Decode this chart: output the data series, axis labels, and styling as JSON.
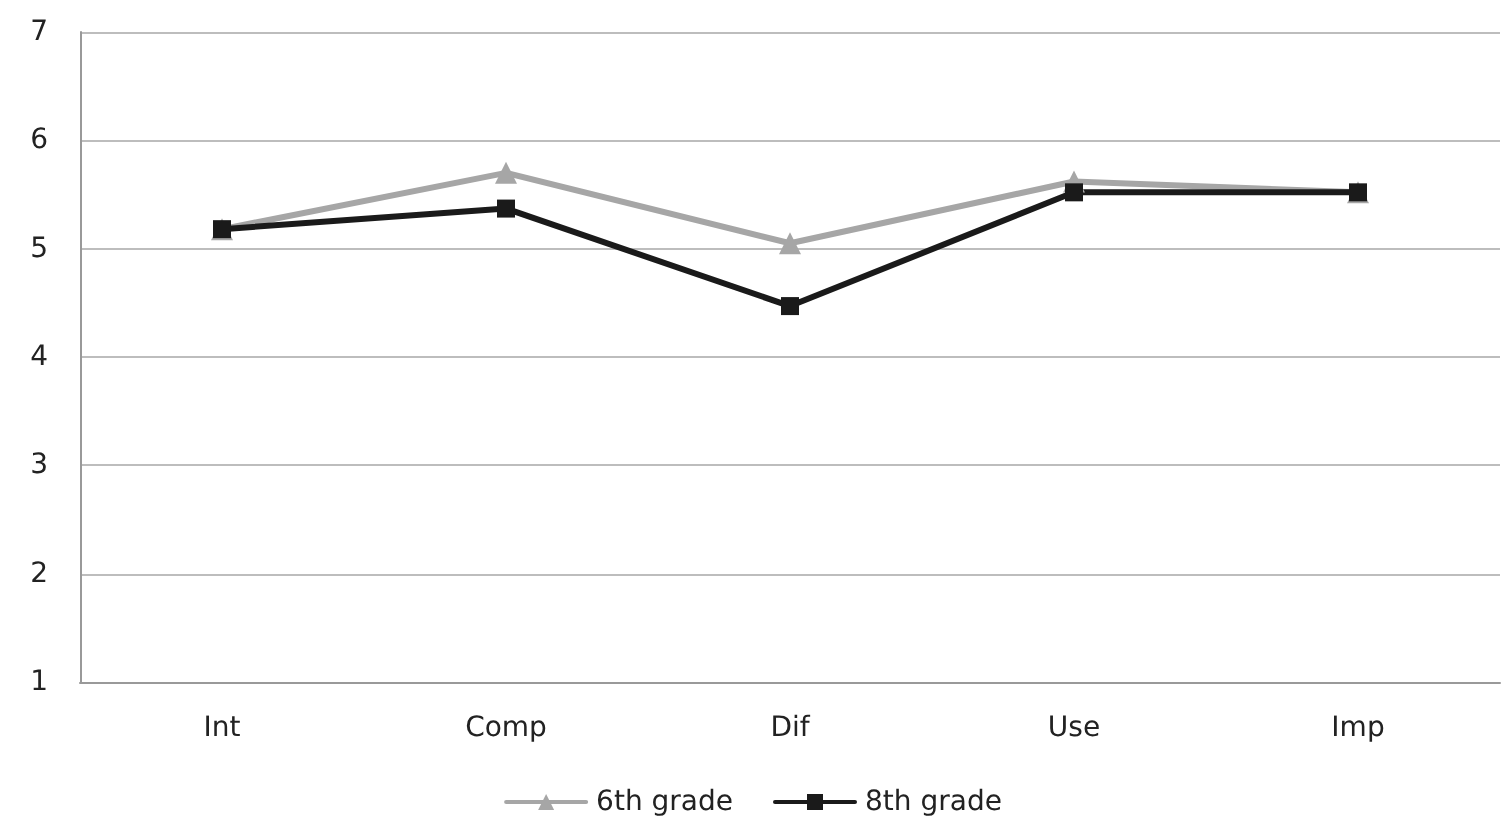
{
  "chart_data": {
    "type": "line",
    "categories": [
      "Int",
      "Comp",
      "Dif",
      "Use",
      "Imp"
    ],
    "series": [
      {
        "name": "6th grade",
        "color": "#a6a6a6",
        "marker": "triangle",
        "values": [
          5.18,
          5.7,
          5.05,
          5.62,
          5.52
        ]
      },
      {
        "name": "8th grade",
        "color": "#1a1a1a",
        "marker": "square",
        "values": [
          5.18,
          5.37,
          4.47,
          5.52,
          5.52
        ]
      }
    ],
    "ylim": [
      1,
      7
    ],
    "yticks": [
      1,
      2,
      3,
      4,
      5,
      6,
      7
    ],
    "grid": "y",
    "legend": "bottom",
    "line_style": "solid"
  }
}
